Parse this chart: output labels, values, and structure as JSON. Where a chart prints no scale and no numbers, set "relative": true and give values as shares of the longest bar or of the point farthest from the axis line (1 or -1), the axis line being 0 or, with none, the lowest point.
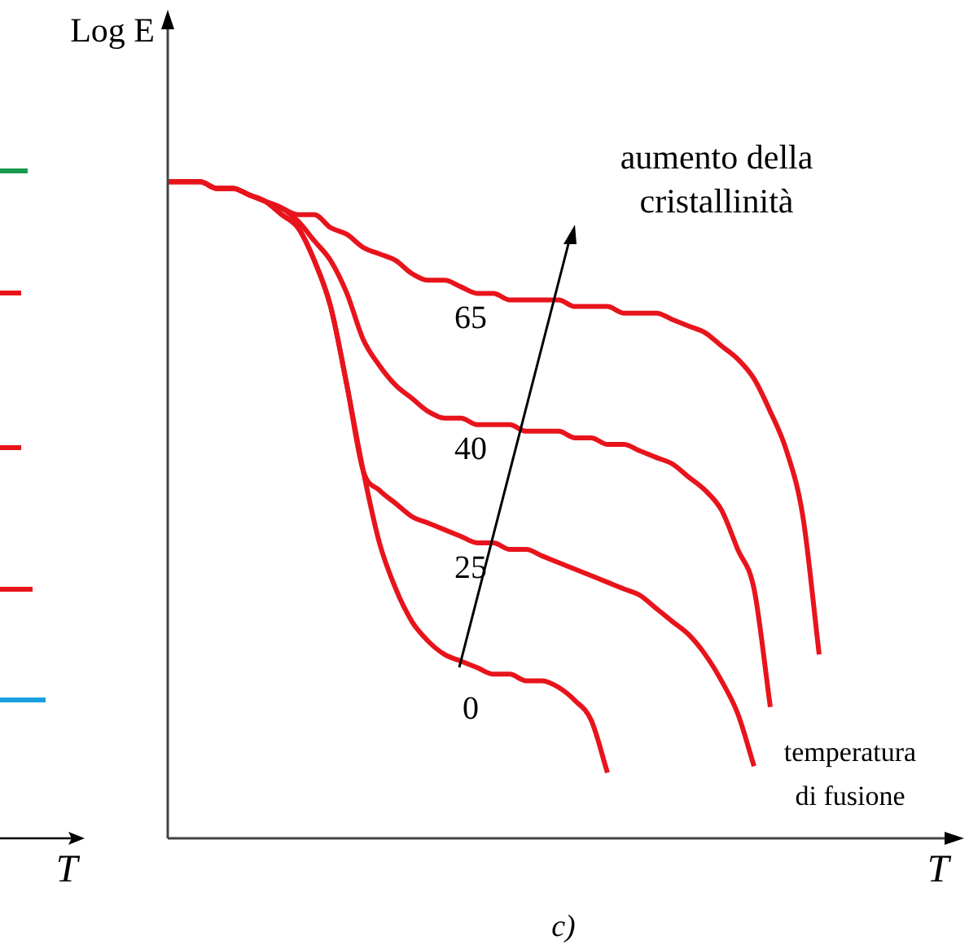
{
  "chart_data": {
    "type": "line",
    "relative": true,
    "xlabel": "T",
    "ylabel": "Log E",
    "legend": false,
    "grid": false,
    "marker": "none",
    "line_style": "solid",
    "categories": [
      null,
      null,
      null,
      null,
      null,
      null,
      null,
      null,
      null,
      null,
      null,
      null,
      null,
      null,
      null,
      null,
      null,
      null,
      null,
      null,
      null,
      null,
      null,
      null,
      null,
      null,
      null,
      null,
      null,
      null,
      null,
      null,
      null,
      null,
      null,
      null,
      null,
      null,
      null,
      null,
      null
    ],
    "series": [
      {
        "name": "65",
        "color": "#e8141c",
        "values": [
          1,
          1,
          1,
          0.99,
          0.99,
          0.98,
          0.97,
          0.96,
          0.95,
          0.95,
          0.93,
          0.92,
          0.9,
          0.89,
          0.88,
          0.86,
          0.85,
          0.85,
          0.84,
          0.83,
          0.83,
          0.82,
          0.82,
          0.82,
          0.82,
          0.81,
          0.81,
          0.81,
          0.8,
          0.8,
          0.8,
          0.79,
          0.78,
          0.77,
          0.75,
          0.73,
          0.7,
          0.65,
          0.59,
          0.49,
          0.28
        ]
      },
      {
        "name": "40",
        "color": "#e8141c",
        "values": [
          1,
          1,
          1,
          0.99,
          0.99,
          0.98,
          0.97,
          0.96,
          0.94,
          0.91,
          0.88,
          0.83,
          0.76,
          0.72,
          0.69,
          0.67,
          0.65,
          0.64,
          0.64,
          0.63,
          0.63,
          0.63,
          0.62,
          0.62,
          0.62,
          0.61,
          0.61,
          0.6,
          0.6,
          0.59,
          0.58,
          0.57,
          0.55,
          0.53,
          0.5,
          0.44,
          0.38,
          0.2,
          null,
          null,
          null
        ]
      },
      {
        "name": "25",
        "color": "#e8141c",
        "values": [
          1,
          1,
          1,
          0.99,
          0.99,
          0.98,
          0.97,
          0.95,
          0.93,
          0.88,
          0.81,
          0.69,
          0.56,
          0.53,
          0.51,
          0.49,
          0.48,
          0.47,
          0.46,
          0.45,
          0.45,
          0.44,
          0.44,
          0.43,
          0.42,
          0.41,
          0.4,
          0.39,
          0.38,
          0.37,
          0.35,
          0.33,
          0.31,
          0.28,
          0.24,
          0.19,
          0.11,
          null,
          null,
          null,
          null
        ]
      },
      {
        "name": "0",
        "color": "#e8141c",
        "values": [
          1,
          1,
          1,
          0.99,
          0.99,
          0.98,
          0.97,
          0.95,
          0.93,
          0.88,
          0.81,
          0.69,
          0.56,
          0.45,
          0.38,
          0.33,
          0.3,
          0.28,
          0.27,
          0.26,
          0.25,
          0.25,
          0.24,
          0.24,
          0.23,
          0.21,
          0.18,
          0.1,
          null,
          null,
          null,
          null,
          null,
          null,
          null,
          null,
          null,
          null,
          null,
          null,
          null
        ]
      }
    ],
    "annotations": [
      "aumento della\ncristallinità",
      "temperatura\ndi fusione",
      "c)",
      "T"
    ]
  }
}
